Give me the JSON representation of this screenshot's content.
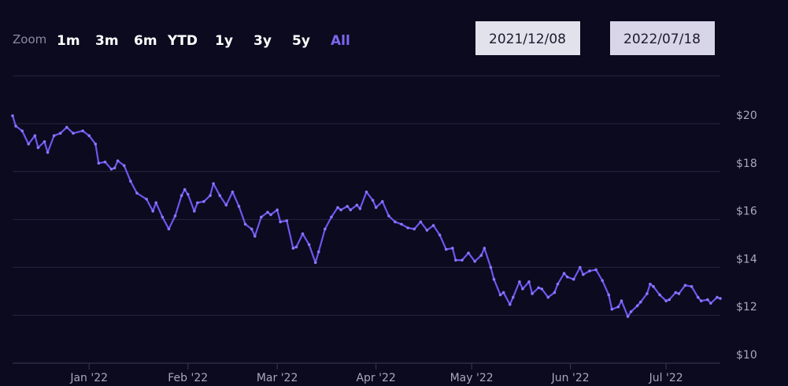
{
  "chart_data": {
    "type": "line",
    "range_selector": {
      "label": "Zoom",
      "buttons": [
        "1m",
        "3m",
        "6m",
        "YTD",
        "1y",
        "3y",
        "5y",
        "All"
      ],
      "active": 7,
      "from": "2021/12/08",
      "to": "2022/07/18"
    },
    "x": [
      "2021-12-08",
      "2021-12-09",
      "2021-12-11",
      "2021-12-13",
      "2021-12-15",
      "2021-12-16",
      "2021-12-18",
      "2021-12-19",
      "2021-12-21",
      "2021-12-23",
      "2021-12-25",
      "2021-12-27",
      "2021-12-30",
      "2022-01-01",
      "2022-01-03",
      "2022-01-04",
      "2022-01-06",
      "2022-01-08",
      "2022-01-09",
      "2022-01-10",
      "2022-01-12",
      "2022-01-14",
      "2022-01-16",
      "2022-01-19",
      "2022-01-21",
      "2022-01-22",
      "2022-01-24",
      "2022-01-26",
      "2022-01-28",
      "2022-01-30",
      "2022-01-31",
      "2022-02-01",
      "2022-02-03",
      "2022-02-04",
      "2022-02-06",
      "2022-02-08",
      "2022-02-09",
      "2022-02-11",
      "2022-02-13",
      "2022-02-15",
      "2022-02-17",
      "2022-02-19",
      "2022-02-21",
      "2022-02-22",
      "2022-02-24",
      "2022-02-26",
      "2022-02-27",
      "2022-03-01",
      "2022-03-02",
      "2022-03-04",
      "2022-03-06",
      "2022-03-07",
      "2022-03-09",
      "2022-03-11",
      "2022-03-13",
      "2022-03-14",
      "2022-03-16",
      "2022-03-18",
      "2022-03-20",
      "2022-03-21",
      "2022-03-23",
      "2022-03-24",
      "2022-03-26",
      "2022-03-27",
      "2022-03-29",
      "2022-03-31",
      "2022-04-01",
      "2022-04-03",
      "2022-04-05",
      "2022-04-07",
      "2022-04-09",
      "2022-04-11",
      "2022-04-13",
      "2022-04-15",
      "2022-04-17",
      "2022-04-19",
      "2022-04-21",
      "2022-04-23",
      "2022-04-25",
      "2022-04-26",
      "2022-04-28",
      "2022-04-30",
      "2022-05-02",
      "2022-05-04",
      "2022-05-05",
      "2022-05-07",
      "2022-05-08",
      "2022-05-10",
      "2022-05-11",
      "2022-05-13",
      "2022-05-14",
      "2022-05-16",
      "2022-05-17",
      "2022-05-19",
      "2022-05-20",
      "2022-05-22",
      "2022-05-23",
      "2022-05-25",
      "2022-05-27",
      "2022-05-28",
      "2022-05-30",
      "2022-05-31",
      "2022-06-02",
      "2022-06-04",
      "2022-06-05",
      "2022-06-07",
      "2022-06-09",
      "2022-06-11",
      "2022-06-13",
      "2022-06-14",
      "2022-06-16",
      "2022-06-17",
      "2022-06-19",
      "2022-06-20",
      "2022-06-22",
      "2022-06-23",
      "2022-06-25",
      "2022-06-26",
      "2022-06-27",
      "2022-06-29",
      "2022-07-01",
      "2022-07-02",
      "2022-07-04",
      "2022-07-05",
      "2022-07-07",
      "2022-07-09",
      "2022-07-11",
      "2022-07-12",
      "2022-07-14",
      "2022-07-15",
      "2022-07-17",
      "2022-07-18"
    ],
    "series": [
      {
        "color": "#6f55ec",
        "values": [
          20.33,
          19.9,
          19.7,
          19.15,
          19.5,
          19.0,
          19.25,
          18.8,
          19.5,
          19.6,
          19.85,
          19.6,
          19.7,
          19.5,
          19.15,
          18.35,
          18.4,
          18.1,
          18.15,
          18.45,
          18.25,
          17.6,
          17.1,
          16.85,
          16.35,
          16.7,
          16.1,
          15.6,
          16.15,
          17.0,
          17.25,
          17.05,
          16.35,
          16.7,
          16.75,
          17.0,
          17.5,
          17.0,
          16.6,
          17.15,
          16.55,
          15.8,
          15.6,
          15.3,
          16.1,
          16.3,
          16.2,
          16.4,
          15.9,
          15.95,
          14.8,
          14.85,
          15.4,
          14.95,
          14.2,
          14.65,
          15.6,
          16.1,
          16.5,
          16.4,
          16.55,
          16.4,
          16.6,
          16.45,
          17.15,
          16.8,
          16.5,
          16.75,
          16.15,
          15.9,
          15.8,
          15.65,
          15.6,
          15.9,
          15.55,
          15.75,
          15.35,
          14.75,
          14.8,
          14.3,
          14.3,
          14.6,
          14.25,
          14.5,
          14.8,
          14.0,
          13.5,
          12.85,
          12.95,
          12.45,
          12.75,
          13.4,
          13.1,
          13.4,
          12.9,
          13.15,
          13.1,
          12.75,
          12.95,
          13.3,
          13.75,
          13.6,
          13.5,
          14.0,
          13.7,
          13.85,
          13.9,
          13.45,
          12.85,
          12.25,
          12.35,
          12.6,
          11.95,
          12.15,
          12.4,
          12.55,
          12.9,
          13.3,
          13.2,
          12.85,
          12.6,
          12.65,
          12.95,
          12.9,
          13.25,
          13.2,
          12.75,
          12.6,
          12.65,
          12.5,
          12.75,
          12.7
        ]
      }
    ],
    "xlim": [
      "2021-12-08",
      "2022-07-18"
    ],
    "xticks": [
      {
        "value": "2022-01-01",
        "label": "Jan '22"
      },
      {
        "value": "2022-02-01",
        "label": "Feb '22"
      },
      {
        "value": "2022-03-01",
        "label": "Mar '22"
      },
      {
        "value": "2022-04-01",
        "label": "Apr '22"
      },
      {
        "value": "2022-05-01",
        "label": "May '22"
      },
      {
        "value": "2022-06-01",
        "label": "Jun '22"
      },
      {
        "value": "2022-07-01",
        "label": "Jul '22"
      }
    ],
    "ylim": [
      10,
      22
    ],
    "yticks": [
      {
        "value": 10,
        "label": "$10"
      },
      {
        "value": 12,
        "label": "$12"
      },
      {
        "value": 14,
        "label": "$14"
      },
      {
        "value": 16,
        "label": "$16"
      },
      {
        "value": 18,
        "label": "$18"
      },
      {
        "value": 20,
        "label": "$20"
      }
    ],
    "grid": true
  }
}
